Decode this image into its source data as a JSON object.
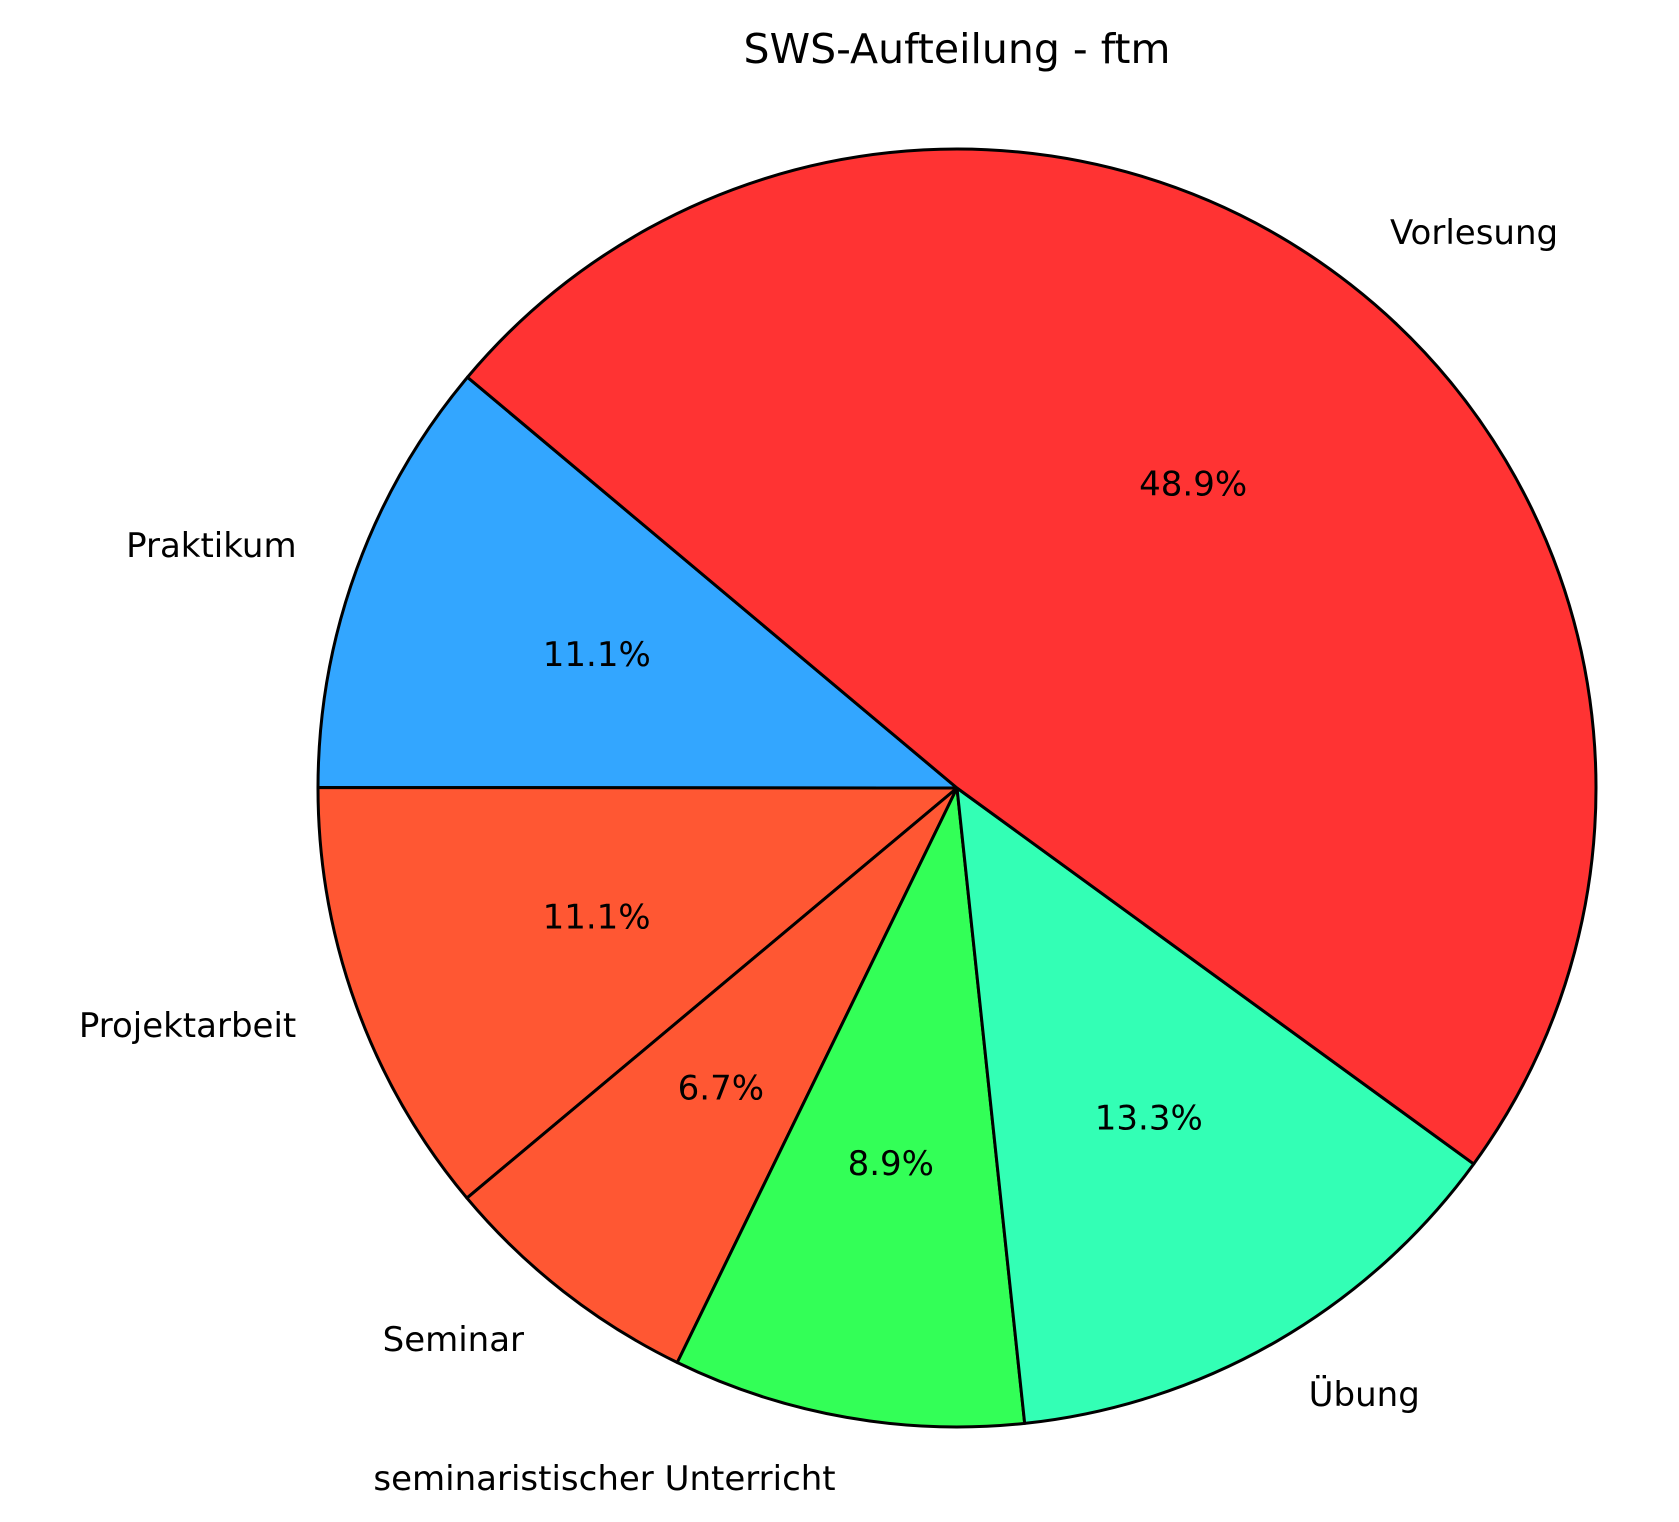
{
  "chart_data": {
    "type": "pie",
    "title": "SWS-Aufteilung - ftm",
    "categories": [
      "Praktikum",
      "Projektarbeit",
      "Seminar",
      "seminaristischer Unterricht",
      "Übung",
      "Vorlesung"
    ],
    "values": [
      11.1,
      11.1,
      6.7,
      8.9,
      13.3,
      48.9
    ],
    "value_labels": [
      "11.1%",
      "11.1%",
      "6.7%",
      "8.9%",
      "13.3%",
      "48.9%"
    ],
    "colors": [
      "#33a6ff",
      "#ff5733",
      "#ff5733",
      "#33ff57",
      "#33ffb5",
      "#ff3333"
    ]
  }
}
